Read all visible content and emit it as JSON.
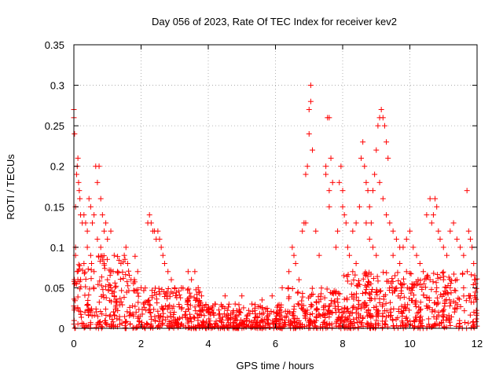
{
  "colors": {
    "series": "#ff0000",
    "axis": "#000000",
    "grid": "#a0a0a0",
    "background": "#ffffff"
  },
  "chart_data": {
    "type": "scatter",
    "title": "Day 056 of 2023, Rate Of TEC Index for receiver kev2",
    "xlabel": "GPS time / hours",
    "ylabel": "ROTI / TECUs",
    "xlim": [
      0,
      12
    ],
    "ylim": [
      0,
      0.35
    ],
    "x_ticks": [
      0,
      2,
      4,
      6,
      8,
      10,
      12
    ],
    "y_ticks": [
      0,
      0.05,
      0.1,
      0.15,
      0.2,
      0.25,
      0.3,
      0.35
    ],
    "x_tick_labels": [
      "0",
      "2",
      "4",
      "6",
      "8",
      "10",
      "12"
    ],
    "y_tick_labels": [
      "0",
      "0.05",
      "0.1",
      "0.15",
      "0.2",
      "0.25",
      "0.3",
      "0.35"
    ],
    "grid": true,
    "marker": "plus",
    "series": [
      {
        "name": "ROTI",
        "points": [
          [
            0.0,
            0.27
          ],
          [
            0.0,
            0.26
          ],
          [
            0.02,
            0.24
          ],
          [
            0.05,
            0.15
          ],
          [
            0.05,
            0.1
          ],
          [
            0.05,
            0.09
          ],
          [
            0.08,
            0.19
          ],
          [
            0.1,
            0.2
          ],
          [
            0.12,
            0.21
          ],
          [
            0.14,
            0.18
          ],
          [
            0.16,
            0.17
          ],
          [
            0.18,
            0.16
          ],
          [
            0.2,
            0.14
          ],
          [
            0.25,
            0.13
          ],
          [
            0.3,
            0.14
          ],
          [
            0.35,
            0.13
          ],
          [
            0.4,
            0.12
          ],
          [
            0.45,
            0.16
          ],
          [
            0.5,
            0.15
          ],
          [
            0.55,
            0.13
          ],
          [
            0.6,
            0.14
          ],
          [
            0.65,
            0.2
          ],
          [
            0.7,
            0.18
          ],
          [
            0.75,
            0.2
          ],
          [
            0.8,
            0.16
          ],
          [
            0.85,
            0.14
          ],
          [
            0.9,
            0.12
          ],
          [
            0.95,
            0.13
          ],
          [
            1.0,
            0.11
          ],
          [
            1.1,
            0.12
          ],
          [
            1.2,
            0.09
          ],
          [
            1.3,
            0.07
          ],
          [
            1.4,
            0.08
          ],
          [
            1.5,
            0.09
          ],
          [
            1.55,
            0.1
          ],
          [
            1.6,
            0.08
          ],
          [
            1.7,
            0.06
          ],
          [
            1.8,
            0.06
          ],
          [
            1.9,
            0.07
          ],
          [
            2.0,
            0.05
          ],
          [
            0.1,
            0.07
          ],
          [
            0.2,
            0.06
          ],
          [
            0.3,
            0.08
          ],
          [
            0.4,
            0.1
          ],
          [
            0.5,
            0.09
          ],
          [
            0.6,
            0.07
          ],
          [
            0.7,
            0.11
          ],
          [
            0.8,
            0.1
          ],
          [
            0.9,
            0.08
          ],
          [
            1.0,
            0.06
          ],
          [
            1.1,
            0.05
          ],
          [
            1.2,
            0.04
          ],
          [
            2.2,
            0.13
          ],
          [
            2.25,
            0.14
          ],
          [
            2.3,
            0.13
          ],
          [
            2.35,
            0.12
          ],
          [
            2.4,
            0.12
          ],
          [
            2.45,
            0.11
          ],
          [
            2.5,
            0.12
          ],
          [
            2.55,
            0.11
          ],
          [
            2.6,
            0.1
          ],
          [
            2.65,
            0.09
          ],
          [
            2.7,
            0.08
          ],
          [
            2.8,
            0.07
          ],
          [
            2.9,
            0.06
          ],
          [
            3.0,
            0.05
          ],
          [
            3.2,
            0.05
          ],
          [
            3.4,
            0.07
          ],
          [
            3.5,
            0.06
          ],
          [
            3.6,
            0.07
          ],
          [
            3.7,
            0.05
          ],
          [
            3.8,
            0.04
          ],
          [
            4.2,
            0.03
          ],
          [
            4.5,
            0.04
          ],
          [
            4.8,
            0.03
          ],
          [
            5.0,
            0.04
          ],
          [
            5.3,
            0.03
          ],
          [
            5.6,
            0.035
          ],
          [
            5.9,
            0.04
          ],
          [
            6.2,
            0.05
          ],
          [
            6.4,
            0.07
          ],
          [
            6.5,
            0.1
          ],
          [
            6.55,
            0.09
          ],
          [
            6.6,
            0.08
          ],
          [
            6.7,
            0.06
          ],
          [
            6.8,
            0.12
          ],
          [
            6.85,
            0.13
          ],
          [
            6.9,
            0.13
          ],
          [
            6.9,
            0.19
          ],
          [
            6.95,
            0.2
          ],
          [
            7.0,
            0.24
          ],
          [
            7.0,
            0.27
          ],
          [
            7.05,
            0.28
          ],
          [
            7.05,
            0.3
          ],
          [
            7.1,
            0.22
          ],
          [
            7.2,
            0.12
          ],
          [
            7.3,
            0.09
          ],
          [
            7.5,
            0.19
          ],
          [
            7.5,
            0.2
          ],
          [
            7.55,
            0.26
          ],
          [
            7.6,
            0.26
          ],
          [
            7.65,
            0.21
          ],
          [
            7.7,
            0.18
          ],
          [
            7.6,
            0.15
          ],
          [
            7.6,
            0.17
          ],
          [
            7.8,
            0.1
          ],
          [
            7.85,
            0.12
          ],
          [
            7.9,
            0.18
          ],
          [
            7.95,
            0.2
          ],
          [
            8.0,
            0.17
          ],
          [
            8.0,
            0.15
          ],
          [
            8.05,
            0.14
          ],
          [
            8.1,
            0.13
          ],
          [
            8.15,
            0.1
          ],
          [
            8.2,
            0.09
          ],
          [
            8.3,
            0.07
          ],
          [
            8.4,
            0.08
          ],
          [
            8.55,
            0.21
          ],
          [
            8.6,
            0.23
          ],
          [
            8.65,
            0.2
          ],
          [
            8.7,
            0.18
          ],
          [
            8.75,
            0.17
          ],
          [
            8.8,
            0.15
          ],
          [
            8.85,
            0.13
          ],
          [
            8.9,
            0.17
          ],
          [
            8.95,
            0.19
          ],
          [
            9.0,
            0.22
          ],
          [
            9.05,
            0.25
          ],
          [
            9.1,
            0.26
          ],
          [
            9.15,
            0.27
          ],
          [
            9.2,
            0.26
          ],
          [
            9.25,
            0.25
          ],
          [
            9.3,
            0.23
          ],
          [
            9.35,
            0.21
          ],
          [
            9.1,
            0.18
          ],
          [
            9.2,
            0.16
          ],
          [
            9.3,
            0.14
          ],
          [
            9.4,
            0.13
          ],
          [
            9.5,
            0.12
          ],
          [
            9.6,
            0.11
          ],
          [
            9.7,
            0.1
          ],
          [
            9.8,
            0.1
          ],
          [
            9.9,
            0.11
          ],
          [
            10.0,
            0.12
          ],
          [
            10.1,
            0.1
          ],
          [
            10.2,
            0.09
          ],
          [
            10.3,
            0.08
          ],
          [
            8.3,
            0.12
          ],
          [
            8.4,
            0.13
          ],
          [
            8.5,
            0.15
          ],
          [
            8.7,
            0.13
          ],
          [
            8.8,
            0.11
          ],
          [
            8.9,
            0.1
          ],
          [
            9.0,
            0.09
          ],
          [
            9.5,
            0.09
          ],
          [
            9.7,
            0.08
          ],
          [
            9.9,
            0.07
          ],
          [
            10.5,
            0.14
          ],
          [
            10.6,
            0.16
          ],
          [
            10.65,
            0.13
          ],
          [
            10.7,
            0.14
          ],
          [
            10.75,
            0.16
          ],
          [
            10.8,
            0.15
          ],
          [
            10.85,
            0.12
          ],
          [
            10.9,
            0.11
          ],
          [
            11.0,
            0.1
          ],
          [
            11.1,
            0.09
          ],
          [
            11.2,
            0.12
          ],
          [
            11.3,
            0.13
          ],
          [
            11.4,
            0.11
          ],
          [
            11.5,
            0.1
          ],
          [
            11.6,
            0.09
          ],
          [
            11.7,
            0.17
          ],
          [
            11.75,
            0.12
          ],
          [
            11.8,
            0.11
          ],
          [
            11.85,
            0.1
          ],
          [
            11.9,
            0.08
          ],
          [
            11.95,
            0.06
          ],
          [
            10.4,
            0.07
          ],
          [
            10.6,
            0.06
          ],
          [
            10.8,
            0.05
          ],
          [
            11.0,
            0.06
          ],
          [
            11.2,
            0.05
          ],
          [
            11.4,
            0.06
          ],
          [
            11.6,
            0.05
          ],
          [
            11.8,
            0.04
          ]
        ]
      }
    ]
  }
}
